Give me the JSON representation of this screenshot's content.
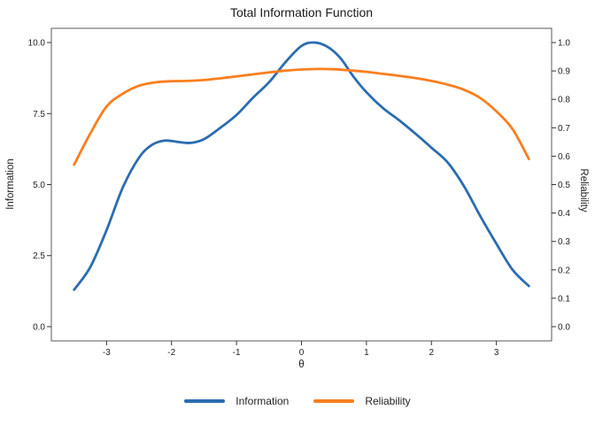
{
  "chart_data": {
    "type": "line",
    "title": "Total Information Function",
    "xlabel": "θ",
    "ylabel_left": "Information",
    "ylabel_right": "Reliability",
    "xlim": [
      -3.85,
      3.85
    ],
    "ylim_left": [
      -0.5,
      10.5
    ],
    "ylim_right": [
      -0.05,
      1.05
    ],
    "grid": false,
    "legend_position": "bottom",
    "x_tick_values": [
      -3,
      -2,
      -1,
      0,
      1,
      2,
      3
    ],
    "x_tick_labels": [
      "-3",
      "-2",
      "-1",
      "0",
      "1",
      "2",
      "3"
    ],
    "y_left_tick_values": [
      0,
      2.5,
      5,
      7.5,
      10
    ],
    "y_left_tick_labels": [
      "0.0",
      "2.5",
      "5.0",
      "7.5",
      "10.0"
    ],
    "y_right_tick_values": [
      0,
      0.1,
      0.2,
      0.3,
      0.4,
      0.5,
      0.6,
      0.7,
      0.8,
      0.9,
      1.0
    ],
    "y_right_tick_labels": [
      "0.0",
      "0.1",
      "0.2",
      "0.3",
      "0.4",
      "0.5",
      "0.6",
      "0.7",
      "0.8",
      "0.9",
      "1.0"
    ],
    "series": [
      {
        "name": "Information",
        "axis": "left",
        "color": "#2b6cb0",
        "x": [
          -3.5,
          -3.25,
          -3.0,
          -2.75,
          -2.5,
          -2.3,
          -2.1,
          -1.9,
          -1.7,
          -1.5,
          -1.25,
          -1.0,
          -0.75,
          -0.5,
          -0.25,
          0.0,
          0.2,
          0.4,
          0.6,
          0.8,
          1.0,
          1.25,
          1.5,
          1.75,
          2.0,
          2.25,
          2.5,
          2.75,
          3.0,
          3.25,
          3.5
        ],
        "y": [
          1.3,
          2.1,
          3.4,
          4.9,
          5.95,
          6.4,
          6.55,
          6.5,
          6.47,
          6.6,
          7.0,
          7.45,
          8.05,
          8.6,
          9.3,
          9.88,
          10.0,
          9.85,
          9.45,
          8.8,
          8.25,
          7.7,
          7.27,
          6.8,
          6.3,
          5.78,
          4.95,
          3.9,
          2.92,
          2.0,
          1.43
        ]
      },
      {
        "name": "Reliability",
        "axis": "right",
        "color": "#fa7e1e",
        "x": [
          -3.5,
          -3.25,
          -3.0,
          -2.75,
          -2.5,
          -2.25,
          -2.0,
          -1.75,
          -1.5,
          -1.25,
          -1.0,
          -0.75,
          -0.5,
          -0.25,
          0.0,
          0.25,
          0.5,
          0.75,
          1.0,
          1.25,
          1.5,
          1.75,
          2.0,
          2.25,
          2.5,
          2.75,
          3.0,
          3.25,
          3.5
        ],
        "y": [
          0.57,
          0.68,
          0.775,
          0.82,
          0.848,
          0.86,
          0.864,
          0.865,
          0.868,
          0.874,
          0.881,
          0.888,
          0.895,
          0.901,
          0.905,
          0.907,
          0.906,
          0.902,
          0.897,
          0.89,
          0.883,
          0.875,
          0.865,
          0.852,
          0.834,
          0.805,
          0.758,
          0.695,
          0.59
        ]
      }
    ],
    "panel_border_color": "#5a5a5a",
    "tick_color": "#333333"
  }
}
